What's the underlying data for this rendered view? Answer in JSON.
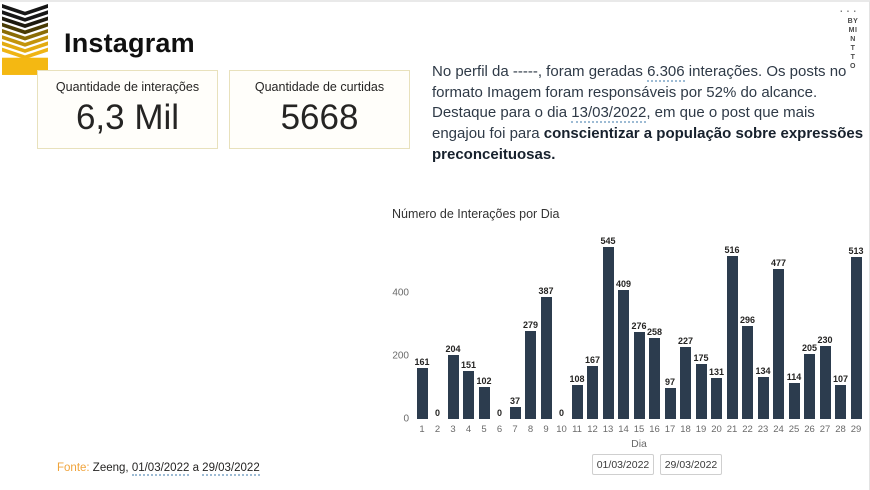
{
  "header": {
    "title": "Instagram",
    "menu_dots": "···"
  },
  "brand": {
    "lines": [
      "BY",
      "MI",
      "N",
      "T",
      "T",
      "O"
    ]
  },
  "kpis": [
    {
      "label": "Quantidade de interações",
      "value": "6,3 Mil"
    },
    {
      "label": "Quantidade de curtidas",
      "value": "5668"
    }
  ],
  "summary": {
    "part1": "No perfil da  -----, foram geradas ",
    "interactions": "6.306",
    "part2": " interações. Os posts no formato Imagem foram responsáveis por 52% do alcance. Destaque para o dia ",
    "highlight_date": "13/03/2022",
    "part3": ", em que o post que mais engajou foi para ",
    "bold": "conscientizar a população sobre expressões preconceituosas."
  },
  "chart_data": {
    "type": "bar",
    "title": "Número de Interações por Dia",
    "xlabel": "Dia",
    "ylabel": "",
    "categories": [
      "1",
      "2",
      "3",
      "4",
      "5",
      "6",
      "7",
      "8",
      "9",
      "10",
      "11",
      "12",
      "13",
      "14",
      "15",
      "16",
      "17",
      "18",
      "19",
      "20",
      "21",
      "22",
      "23",
      "24",
      "25",
      "26",
      "27",
      "28",
      "29"
    ],
    "values": [
      161,
      0,
      204,
      151,
      102,
      0,
      37,
      279,
      387,
      0,
      108,
      167,
      545,
      409,
      276,
      258,
      97,
      227,
      175,
      131,
      516,
      296,
      134,
      477,
      114,
      205,
      230,
      107,
      513
    ],
    "ylim": [
      0,
      590
    ],
    "yticks": [
      0,
      200,
      400
    ],
    "grid": false,
    "legend": "none",
    "bar_color": "#2c3c4e",
    "data_labels": true
  },
  "slicer": {
    "start_date": "01/03/2022",
    "end_date": "29/03/2022"
  },
  "footer": {
    "label": "Fonte:",
    "source": " Zeeng, ",
    "range_start": "01/03/2022",
    "separator": " a ",
    "range_end": "29/03/2022"
  },
  "colors": {
    "accent_yellow": "#f2b705",
    "bar": "#2c3c4e",
    "fonte_label": "#f0a43c",
    "kpi_border": "#e8e1bc",
    "text_dark": "#252423"
  }
}
